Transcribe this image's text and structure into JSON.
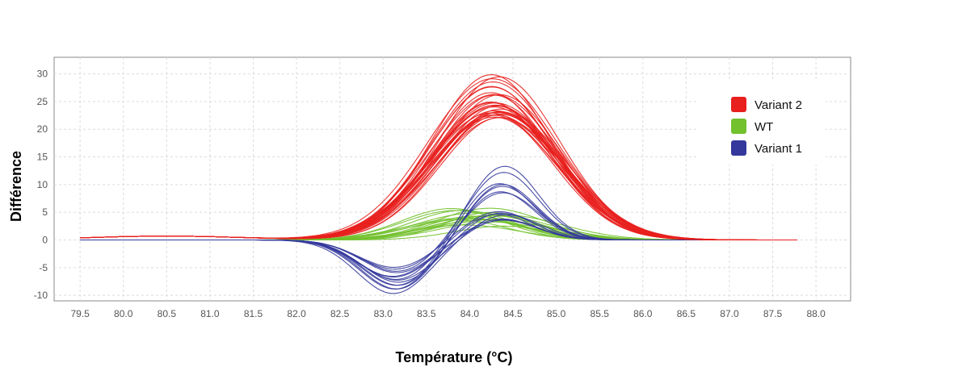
{
  "chart_data": {
    "type": "line",
    "title": "",
    "xlabel": "Température (°C)",
    "ylabel": "Différence",
    "xlim": [
      79.2,
      88.4
    ],
    "ylim": [
      -11,
      33
    ],
    "xticks": [
      "79.5",
      "80.0",
      "80.5",
      "81.0",
      "81.5",
      "82.0",
      "82.5",
      "83.0",
      "83.5",
      "84.0",
      "84.5",
      "85.0",
      "85.5",
      "86.0",
      "86.5",
      "87.0",
      "87.5",
      "88.0"
    ],
    "yticks": [
      "30",
      "25",
      "20",
      "15",
      "10",
      "5",
      "0",
      "-5",
      "-10"
    ],
    "grid": true,
    "legend_position": "top-right",
    "x_range": [
      79.5,
      87.8
    ],
    "series": [
      {
        "name": "Variant 2",
        "color": "#e8201e",
        "curve_count": 30,
        "peak_x": 84.3,
        "peak_height_range": [
          22,
          31
        ],
        "width_sd": 0.72,
        "representative": {
          "x": [
            79.5,
            80.5,
            81.5,
            82.0,
            82.5,
            83.0,
            83.5,
            84.0,
            84.3,
            84.5,
            85.0,
            85.5,
            86.0,
            86.5,
            87.0,
            87.8
          ],
          "y": [
            0,
            0.6,
            0.8,
            1.2,
            2.5,
            6,
            14,
            22,
            25,
            24,
            16,
            6,
            1.5,
            0.3,
            0,
            0
          ]
        }
      },
      {
        "name": "WT",
        "color": "#72c12d",
        "curve_count": 18,
        "peak_x": 84.1,
        "peak_height_range": [
          2.5,
          6
        ],
        "width_sd": 0.6,
        "representative": {
          "x": [
            79.5,
            81.5,
            82.5,
            83.0,
            83.5,
            84.0,
            84.5,
            85.0,
            85.5,
            86.0,
            87.8
          ],
          "y": [
            0,
            0.1,
            0.6,
            1.5,
            3.2,
            4.2,
            3.6,
            1.8,
            0.5,
            0.1,
            0
          ]
        }
      },
      {
        "name": "Variant 1",
        "color": "#34389c",
        "curve_count": 14,
        "trough_x": 83.15,
        "trough_depth_range": [
          5,
          9.5
        ],
        "peak_x": 84.35,
        "peak_height_range": [
          3.5,
          13.8
        ],
        "representative": {
          "x": [
            79.5,
            81.5,
            82.0,
            82.5,
            83.0,
            83.2,
            83.5,
            84.0,
            84.3,
            84.5,
            85.0,
            85.5,
            86.0,
            87.8
          ],
          "y": [
            0,
            -0.2,
            -1,
            -3.8,
            -7.2,
            -7.5,
            -4,
            6,
            9,
            8.5,
            3.5,
            0.8,
            0.1,
            0
          ]
        }
      }
    ]
  }
}
